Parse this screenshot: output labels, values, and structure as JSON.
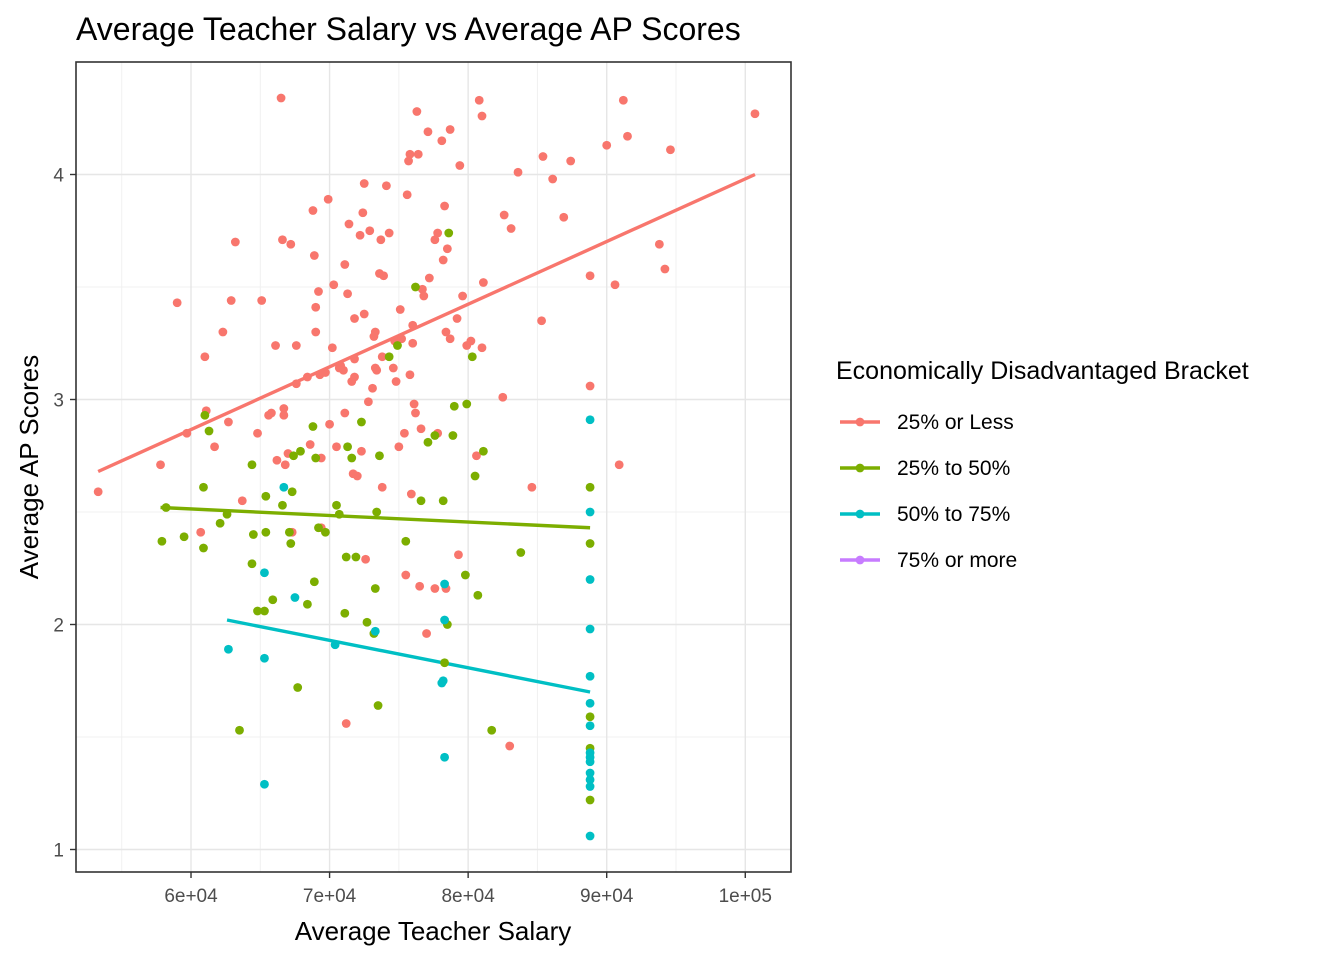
{
  "chart_data": {
    "type": "scatter",
    "title": "Average Teacher Salary vs Average AP Scores",
    "xlabel": "Average Teacher Salary",
    "ylabel": "Average AP Scores",
    "xlim": [
      51700,
      103300
    ],
    "ylim": [
      0.9,
      4.5
    ],
    "x_ticks": [
      {
        "value": 60000,
        "label": "6e+04"
      },
      {
        "value": 70000,
        "label": "7e+04"
      },
      {
        "value": 80000,
        "label": "8e+04"
      },
      {
        "value": 90000,
        "label": "9e+04"
      },
      {
        "value": 100000,
        "label": "1e+05"
      }
    ],
    "y_ticks": [
      {
        "value": 1,
        "label": "1"
      },
      {
        "value": 2,
        "label": "2"
      },
      {
        "value": 3,
        "label": "3"
      },
      {
        "value": 4,
        "label": "4"
      }
    ],
    "grid": true,
    "legend": {
      "title": "Economically Disadvantaged Bracket",
      "position": "right"
    },
    "series": [
      {
        "name": "25% or Less",
        "color": "#F8766D",
        "trend": [
          [
            53300,
            2.68
          ],
          [
            100700,
            4.0
          ]
        ],
        "points": [
          [
            53300,
            2.59
          ],
          [
            57800,
            2.71
          ],
          [
            59000,
            3.43
          ],
          [
            59700,
            2.85
          ],
          [
            60700,
            2.41
          ],
          [
            61100,
            2.95
          ],
          [
            61000,
            3.19
          ],
          [
            61700,
            2.79
          ],
          [
            62300,
            3.3
          ],
          [
            62700,
            2.9
          ],
          [
            62900,
            3.44
          ],
          [
            63200,
            3.7
          ],
          [
            63700,
            2.55
          ],
          [
            64800,
            2.85
          ],
          [
            65100,
            3.44
          ],
          [
            65600,
            2.93
          ],
          [
            65800,
            2.94
          ],
          [
            66100,
            3.24
          ],
          [
            66200,
            2.73
          ],
          [
            66500,
            4.34
          ],
          [
            66600,
            3.71
          ],
          [
            66700,
            2.96
          ],
          [
            66700,
            2.93
          ],
          [
            66800,
            2.71
          ],
          [
            67000,
            2.76
          ],
          [
            67200,
            3.69
          ],
          [
            67300,
            2.41
          ],
          [
            67600,
            3.24
          ],
          [
            67600,
            3.07
          ],
          [
            68400,
            3.1
          ],
          [
            68600,
            2.8
          ],
          [
            68800,
            3.84
          ],
          [
            68900,
            3.64
          ],
          [
            69000,
            3.41
          ],
          [
            69000,
            3.3
          ],
          [
            69200,
            3.48
          ],
          [
            69300,
            3.11
          ],
          [
            69400,
            2.74
          ],
          [
            69400,
            2.43
          ],
          [
            69700,
            3.12
          ],
          [
            69900,
            3.89
          ],
          [
            70000,
            2.89
          ],
          [
            70200,
            3.23
          ],
          [
            70300,
            3.51
          ],
          [
            70500,
            2.79
          ],
          [
            70700,
            3.14
          ],
          [
            70800,
            3.15
          ],
          [
            71000,
            3.13
          ],
          [
            71100,
            2.94
          ],
          [
            71100,
            3.6
          ],
          [
            71300,
            3.47
          ],
          [
            71400,
            3.78
          ],
          [
            71600,
            3.08
          ],
          [
            71700,
            2.67
          ],
          [
            71800,
            3.36
          ],
          [
            71800,
            3.1
          ],
          [
            71800,
            3.18
          ],
          [
            72000,
            2.66
          ],
          [
            72200,
            3.73
          ],
          [
            72300,
            2.77
          ],
          [
            72400,
            3.83
          ],
          [
            72500,
            3.96
          ],
          [
            72500,
            3.38
          ],
          [
            72800,
            2.99
          ],
          [
            72900,
            3.75
          ],
          [
            73100,
            3.05
          ],
          [
            73200,
            3.28
          ],
          [
            73300,
            3.3
          ],
          [
            73300,
            3.14
          ],
          [
            73400,
            3.13
          ],
          [
            73600,
            3.56
          ],
          [
            73700,
            3.71
          ],
          [
            73800,
            2.61
          ],
          [
            73800,
            3.19
          ],
          [
            73900,
            3.55
          ],
          [
            74100,
            3.95
          ],
          [
            74300,
            3.74
          ],
          [
            74600,
            3.14
          ],
          [
            74700,
            3.26
          ],
          [
            74800,
            3.08
          ],
          [
            75000,
            2.79
          ],
          [
            75100,
            3.4
          ],
          [
            75200,
            3.27
          ],
          [
            75400,
            2.85
          ],
          [
            75500,
            2.22
          ],
          [
            75600,
            3.91
          ],
          [
            75700,
            4.06
          ],
          [
            75800,
            4.09
          ],
          [
            75800,
            3.11
          ],
          [
            75900,
            2.58
          ],
          [
            76000,
            3.33
          ],
          [
            76000,
            3.25
          ],
          [
            76100,
            2.98
          ],
          [
            76200,
            2.94
          ],
          [
            76300,
            4.28
          ],
          [
            76400,
            4.09
          ],
          [
            76600,
            2.87
          ],
          [
            76700,
            3.49
          ],
          [
            76800,
            3.46
          ],
          [
            77000,
            1.96
          ],
          [
            77100,
            4.19
          ],
          [
            77200,
            3.54
          ],
          [
            77600,
            2.16
          ],
          [
            77600,
            3.71
          ],
          [
            77800,
            3.74
          ],
          [
            77800,
            2.85
          ],
          [
            78100,
            4.15
          ],
          [
            78200,
            3.62
          ],
          [
            78300,
            3.86
          ],
          [
            78400,
            3.3
          ],
          [
            78500,
            3.67
          ],
          [
            78700,
            4.2
          ],
          [
            78700,
            3.27
          ],
          [
            79200,
            3.36
          ],
          [
            79300,
            2.31
          ],
          [
            79400,
            4.04
          ],
          [
            79600,
            3.46
          ],
          [
            79900,
            3.24
          ],
          [
            80200,
            3.26
          ],
          [
            80600,
            2.75
          ],
          [
            80800,
            4.33
          ],
          [
            81000,
            3.23
          ],
          [
            81000,
            4.26
          ],
          [
            81100,
            3.52
          ],
          [
            82500,
            3.01
          ],
          [
            82600,
            3.82
          ],
          [
            83100,
            3.76
          ],
          [
            83000,
            1.46
          ],
          [
            83600,
            4.01
          ],
          [
            84600,
            2.61
          ],
          [
            85300,
            3.35
          ],
          [
            85400,
            4.08
          ],
          [
            86100,
            3.98
          ],
          [
            86900,
            3.81
          ],
          [
            87400,
            4.06
          ],
          [
            88800,
            3.55
          ],
          [
            88800,
            3.06
          ],
          [
            90000,
            4.13
          ],
          [
            90600,
            3.51
          ],
          [
            90900,
            2.71
          ],
          [
            91200,
            4.33
          ],
          [
            91500,
            4.17
          ],
          [
            93800,
            3.69
          ],
          [
            94200,
            3.58
          ],
          [
            94600,
            4.11
          ],
          [
            100700,
            4.27
          ],
          [
            71200,
            1.56
          ],
          [
            72600,
            2.29
          ],
          [
            76500,
            2.17
          ],
          [
            78400,
            2.16
          ]
        ]
      },
      {
        "name": "25% to 50%",
        "color": "#7CAE00",
        "trend": [
          [
            57800,
            2.52
          ],
          [
            88800,
            2.43
          ]
        ],
        "points": [
          [
            57900,
            2.37
          ],
          [
            58200,
            2.52
          ],
          [
            59500,
            2.39
          ],
          [
            60900,
            2.34
          ],
          [
            60900,
            2.61
          ],
          [
            61000,
            2.93
          ],
          [
            61300,
            2.86
          ],
          [
            62100,
            2.45
          ],
          [
            62600,
            2.49
          ],
          [
            63500,
            1.53
          ],
          [
            64400,
            2.71
          ],
          [
            64400,
            2.27
          ],
          [
            64500,
            2.4
          ],
          [
            64800,
            2.06
          ],
          [
            65300,
            2.06
          ],
          [
            65400,
            2.41
          ],
          [
            65400,
            2.57
          ],
          [
            65900,
            2.11
          ],
          [
            66600,
            2.53
          ],
          [
            67100,
            2.41
          ],
          [
            67200,
            2.36
          ],
          [
            67300,
            2.59
          ],
          [
            67400,
            2.75
          ],
          [
            67700,
            1.72
          ],
          [
            67900,
            2.77
          ],
          [
            68400,
            2.09
          ],
          [
            68800,
            2.88
          ],
          [
            68900,
            2.19
          ],
          [
            69000,
            2.74
          ],
          [
            69200,
            2.43
          ],
          [
            69700,
            2.41
          ],
          [
            70500,
            2.53
          ],
          [
            70700,
            2.49
          ],
          [
            71100,
            2.05
          ],
          [
            71200,
            2.3
          ],
          [
            71300,
            2.79
          ],
          [
            71600,
            2.74
          ],
          [
            71900,
            2.3
          ],
          [
            72300,
            2.9
          ],
          [
            72700,
            2.01
          ],
          [
            73200,
            1.96
          ],
          [
            73300,
            2.16
          ],
          [
            73400,
            2.5
          ],
          [
            73500,
            1.64
          ],
          [
            73600,
            2.75
          ],
          [
            74300,
            3.19
          ],
          [
            74900,
            3.24
          ],
          [
            75500,
            2.37
          ],
          [
            76200,
            3.5
          ],
          [
            76600,
            2.55
          ],
          [
            77100,
            2.81
          ],
          [
            77600,
            2.84
          ],
          [
            78200,
            2.55
          ],
          [
            78300,
            1.83
          ],
          [
            78500,
            2.0
          ],
          [
            78600,
            3.74
          ],
          [
            78900,
            2.84
          ],
          [
            79000,
            2.97
          ],
          [
            79800,
            2.22
          ],
          [
            79900,
            2.98
          ],
          [
            80300,
            3.19
          ],
          [
            80500,
            2.66
          ],
          [
            80700,
            2.13
          ],
          [
            81100,
            2.77
          ],
          [
            81700,
            1.53
          ],
          [
            83800,
            2.32
          ],
          [
            88800,
            2.61
          ],
          [
            88800,
            2.36
          ],
          [
            88800,
            1.59
          ],
          [
            88800,
            1.22
          ],
          [
            88800,
            1.45
          ]
        ]
      },
      {
        "name": "50% to 75%",
        "color": "#00BFC4",
        "trend": [
          [
            62600,
            2.02
          ],
          [
            88800,
            1.7
          ]
        ],
        "points": [
          [
            62700,
            1.89
          ],
          [
            65300,
            2.23
          ],
          [
            65300,
            1.85
          ],
          [
            65300,
            1.29
          ],
          [
            66700,
            2.61
          ],
          [
            67500,
            2.12
          ],
          [
            70400,
            1.91
          ],
          [
            73300,
            1.97
          ],
          [
            78100,
            1.74
          ],
          [
            78200,
            1.75
          ],
          [
            78300,
            2.18
          ],
          [
            78300,
            2.02
          ],
          [
            78300,
            1.41
          ],
          [
            88800,
            2.91
          ],
          [
            88800,
            2.5
          ],
          [
            88800,
            2.2
          ],
          [
            88800,
            1.98
          ],
          [
            88800,
            1.77
          ],
          [
            88800,
            1.65
          ],
          [
            88800,
            1.55
          ],
          [
            88800,
            1.43
          ],
          [
            88800,
            1.41
          ],
          [
            88800,
            1.39
          ],
          [
            88800,
            1.34
          ],
          [
            88800,
            1.31
          ],
          [
            88800,
            1.28
          ],
          [
            88800,
            1.06
          ]
        ]
      },
      {
        "name": "75% or more",
        "color": "#C77CFF",
        "trend": [],
        "points": []
      }
    ]
  }
}
